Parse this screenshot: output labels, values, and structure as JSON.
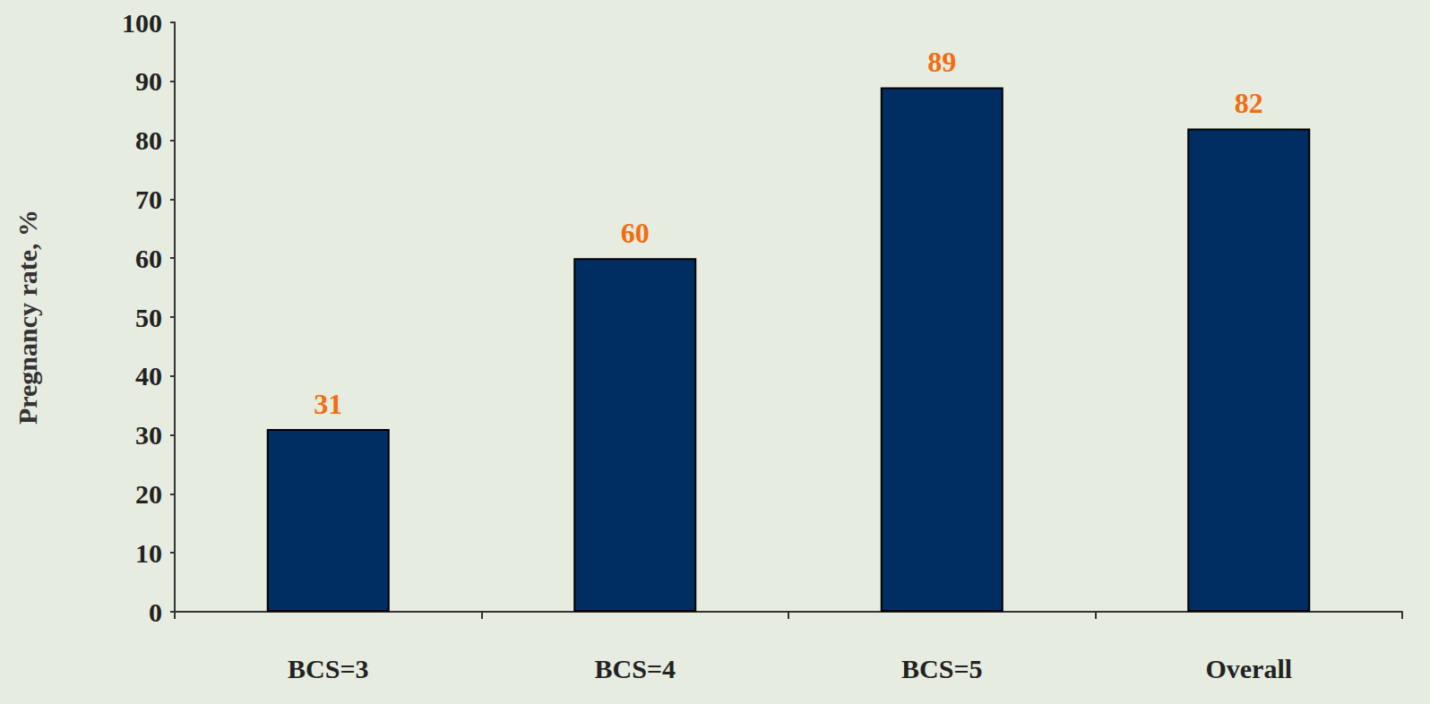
{
  "chart_data": {
    "type": "bar",
    "y_label": "Pregnancy rate, %",
    "categories": [
      "BCS=3",
      "BCS=4",
      "BCS=5",
      "Overall"
    ],
    "values": [
      31,
      60,
      89,
      82
    ],
    "color": "#002d62",
    "ylim": [
      0,
      100
    ],
    "yticks": [
      0,
      10,
      20,
      30,
      40,
      50,
      60,
      70,
      80,
      90,
      100
    ],
    "grid": false,
    "data_labels": true
  }
}
